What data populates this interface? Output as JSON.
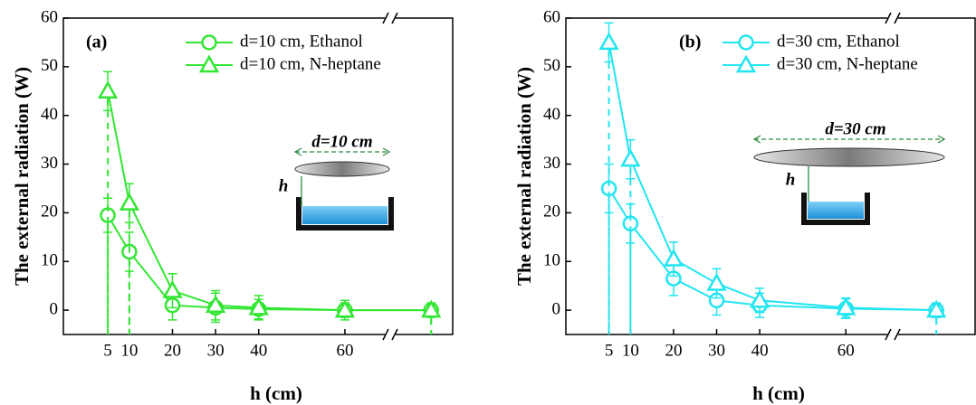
{
  "chart_data": [
    {
      "type": "line",
      "title": "(a)",
      "ylabel": "The external radiation (W)",
      "xlabel": "h (cm)",
      "x": [
        5,
        10,
        20,
        30,
        40,
        60,
        80
      ],
      "series": [
        {
          "name": "d=10 cm, Ethanol",
          "color": "#33e633",
          "marker": "circle",
          "values": [
            19.5,
            12,
            1,
            0.5,
            0.2,
            0,
            0
          ],
          "errors": [
            3.5,
            4,
            3,
            3,
            2,
            1.5,
            1
          ]
        },
        {
          "name": "d=10 cm, N-heptane",
          "color": "#33e633",
          "marker": "triangle",
          "values": [
            45,
            22,
            4,
            1,
            0.5,
            0,
            0
          ],
          "errors": [
            4,
            4,
            3.5,
            3,
            2.5,
            2,
            1.5
          ]
        }
      ],
      "xlim": [
        -5.3,
        85
      ],
      "xticks": [
        5,
        10,
        20,
        30,
        40,
        60
      ],
      "ylim": [
        -5,
        60
      ],
      "yticks": [
        0,
        10,
        20,
        30,
        40,
        50,
        60
      ],
      "annotations": [
        "d=10 cm",
        "h"
      ],
      "grid": false
    },
    {
      "type": "line",
      "title": "(b)",
      "ylabel": "The external radiation (W)",
      "xlabel": "h (cm)",
      "x": [
        5,
        10,
        20,
        30,
        40,
        60,
        81
      ],
      "series": [
        {
          "name": "d=30 cm, Ethanol",
          "color": "#22e5f0",
          "marker": "circle",
          "values": [
            25,
            17.8,
            6.5,
            2,
            1,
            0.3,
            0
          ],
          "errors": [
            5,
            4,
            3.5,
            3,
            2.5,
            2,
            1
          ]
        },
        {
          "name": "d=30 cm, N-heptane",
          "color": "#22e5f0",
          "marker": "triangle",
          "values": [
            55,
            31,
            10.5,
            5.5,
            2,
            0.5,
            0
          ],
          "errors": [
            4,
            4,
            3.5,
            3,
            2.5,
            2,
            1.5
          ]
        }
      ],
      "xlim": [
        -5,
        90
      ],
      "xticks": [
        5,
        10,
        20,
        30,
        40,
        60
      ],
      "ylim": [
        -5,
        60
      ],
      "yticks": [
        0,
        10,
        20,
        30,
        40,
        50,
        60
      ],
      "annotations": [
        "d=30 cm",
        "h"
      ],
      "grid": false
    }
  ]
}
